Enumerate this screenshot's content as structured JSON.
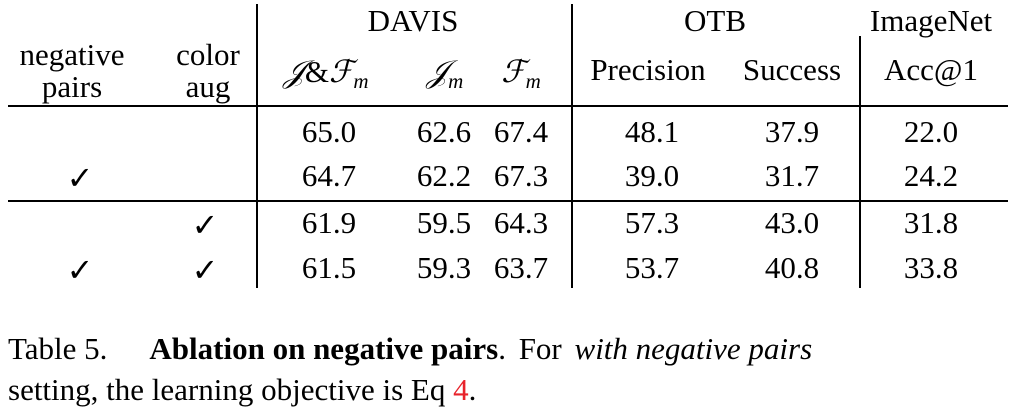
{
  "table": {
    "group_headers": {
      "davis": "DAVIS",
      "otb": "OTB",
      "imagenet": "ImageNet"
    },
    "row_headers": {
      "negative_line1": "negative",
      "negative_line2": "pairs",
      "color_line1": "color",
      "color_line2": "aug"
    },
    "column_headers": {
      "jf_base_j": "𝒥",
      "jf_amp": "&",
      "jf_base_f": "ℱ",
      "jf_sub": "m",
      "j_base": "𝒥",
      "j_sub": "m",
      "f_base": "ℱ",
      "f_sub": "m",
      "precision": "Precision",
      "success": "Success",
      "acc1": "Acc@1"
    },
    "check_mark": "✓",
    "rows": [
      {
        "negative_pairs": false,
        "color_aug": false,
        "jf": "65.0",
        "j": "62.6",
        "f": "67.4",
        "precision": "48.1",
        "success": "37.9",
        "acc1": "22.0"
      },
      {
        "negative_pairs": true,
        "color_aug": false,
        "jf": "64.7",
        "j": "62.2",
        "f": "67.3",
        "precision": "39.0",
        "success": "31.7",
        "acc1": "24.2"
      },
      {
        "negative_pairs": false,
        "color_aug": true,
        "jf": "61.9",
        "j": "59.5",
        "f": "64.3",
        "precision": "57.3",
        "success": "43.0",
        "acc1": "31.8"
      },
      {
        "negative_pairs": true,
        "color_aug": true,
        "jf": "61.5",
        "j": "59.3",
        "f": "63.7",
        "precision": "53.7",
        "success": "40.8",
        "acc1": "33.8"
      }
    ]
  },
  "caption": {
    "label": "Table 5.",
    "bold_title": "Ablation on negative pairs",
    "text_before_italic": ". For ",
    "italic_text": "with negative pairs",
    "text_after_italic": " setting, the learning objective is Eq ",
    "ref": "4",
    "end": "."
  }
}
